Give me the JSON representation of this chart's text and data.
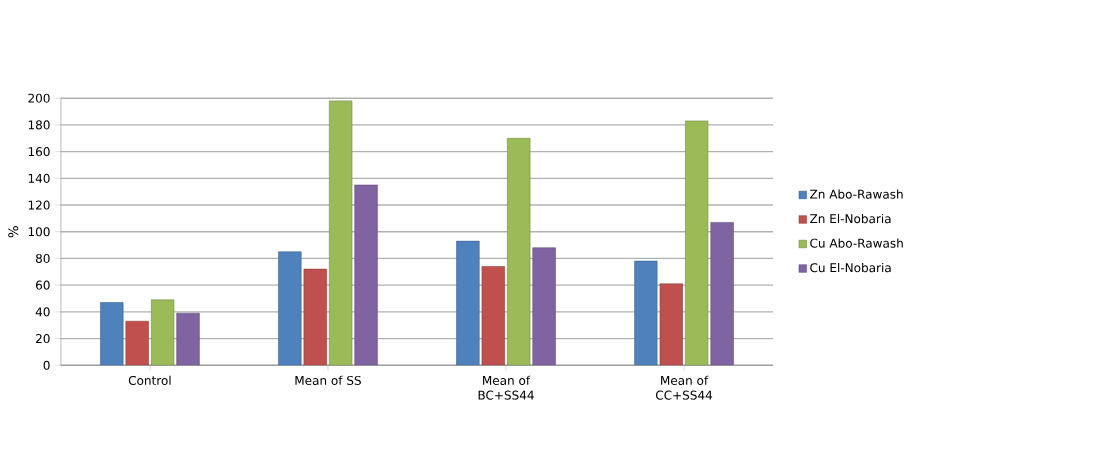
{
  "chart_data": {
    "type": "bar",
    "ylabel": "%",
    "categories": [
      "Control",
      "Mean of SS",
      "Mean of BC+SS44",
      "Mean of CC+SS44"
    ],
    "series": [
      {
        "name": "Zn Abo-Rawash",
        "color": "#4f81bd",
        "values": [
          47,
          85,
          93,
          78
        ]
      },
      {
        "name": "Zn El-Nobaria",
        "color": "#c0504d",
        "values": [
          33,
          72,
          74,
          61
        ]
      },
      {
        "name": "Cu Abo-Rawash",
        "color": "#9bbb59",
        "values": [
          49,
          198,
          170,
          183
        ]
      },
      {
        "name": "Cu El-Nobaria",
        "color": "#8064a2",
        "values": [
          39,
          135,
          88,
          107
        ]
      }
    ],
    "ylim": [
      0,
      200
    ],
    "yticks": [
      0,
      20,
      40,
      60,
      80,
      100,
      120,
      140,
      160,
      180,
      200
    ],
    "grid": "y",
    "legend": "right"
  }
}
